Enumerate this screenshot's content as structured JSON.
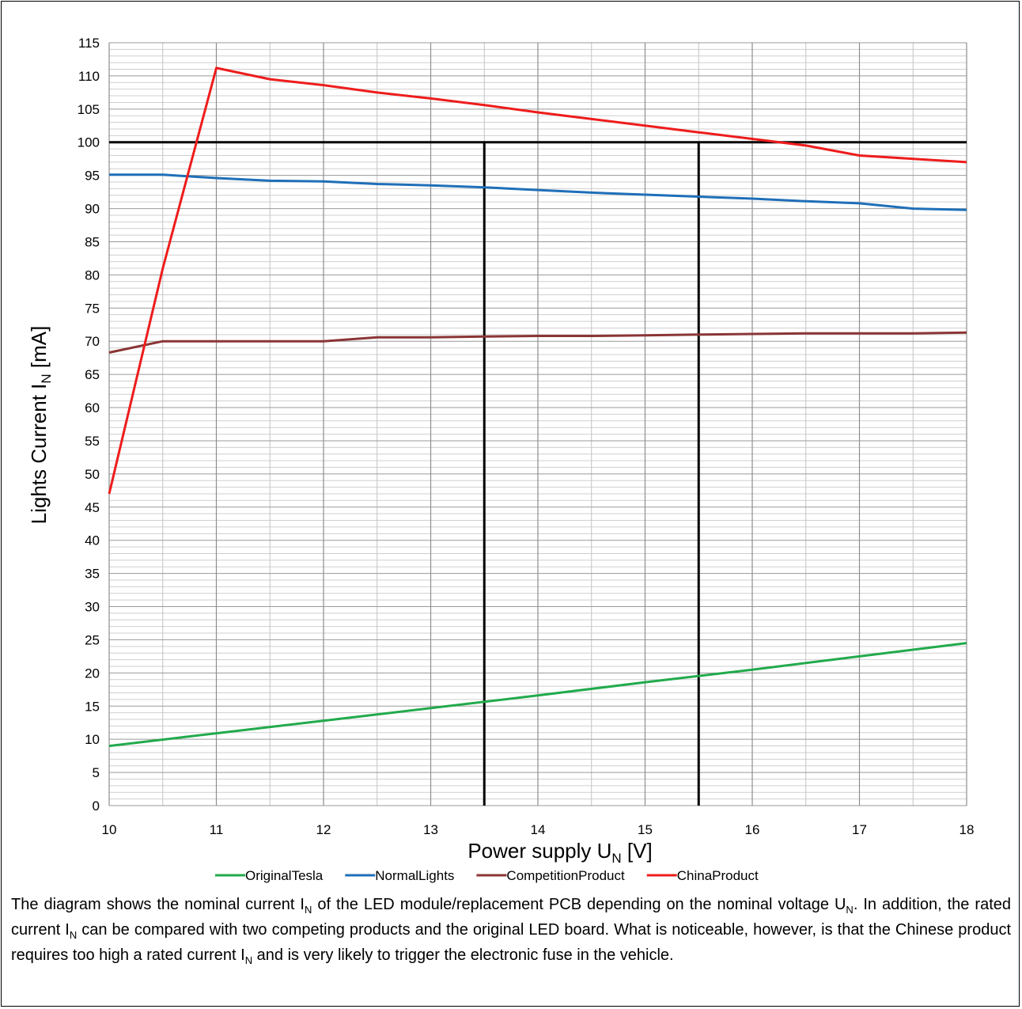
{
  "chart_data": {
    "type": "line",
    "xlabel": {
      "main": "Power supply U",
      "sub": "N",
      "unit": " [V]"
    },
    "ylabel": {
      "main": "Lights Current I",
      "sub": "N",
      "unit": " [mA]"
    },
    "xlim": [
      10,
      18
    ],
    "ylim": [
      0,
      115
    ],
    "x_major_ticks": [
      10,
      11,
      12,
      13,
      14,
      15,
      16,
      17,
      18
    ],
    "y_major_ticks": [
      0,
      5,
      10,
      15,
      20,
      25,
      30,
      35,
      40,
      45,
      50,
      55,
      60,
      65,
      70,
      75,
      80,
      85,
      90,
      95,
      100,
      105,
      110,
      115
    ],
    "x_minor_step": 0.5,
    "y_minor_step": 1,
    "grid": true,
    "legend_position": "bottom",
    "series": [
      {
        "name": "OriginalTesla",
        "color": "#22aa4c",
        "x": [
          10,
          11,
          12,
          13,
          14,
          15,
          16,
          17,
          18
        ],
        "values": [
          9.0,
          10.9,
          12.8,
          14.7,
          16.6,
          18.6,
          20.5,
          22.5,
          24.5
        ]
      },
      {
        "name": "NormalLights",
        "color": "#1f6fb8",
        "x": [
          10,
          10.5,
          11,
          11.5,
          12,
          12.5,
          13,
          13.5,
          14,
          14.5,
          15,
          15.5,
          16,
          16.5,
          17,
          17.5,
          18
        ],
        "values": [
          95.1,
          95.1,
          94.6,
          94.2,
          94.1,
          93.7,
          93.5,
          93.2,
          92.8,
          92.4,
          92.1,
          91.8,
          91.5,
          91.1,
          90.8,
          90.0,
          89.8
        ]
      },
      {
        "name": "CompetitionProduct",
        "color": "#8b3535",
        "x": [
          10,
          10.5,
          11,
          11.5,
          12,
          12.5,
          13,
          13.5,
          14,
          14.5,
          15,
          15.5,
          16,
          16.5,
          17,
          17.5,
          18
        ],
        "values": [
          68.3,
          70.0,
          70.0,
          70.0,
          70.0,
          70.6,
          70.6,
          70.7,
          70.8,
          70.8,
          70.9,
          71.0,
          71.1,
          71.2,
          71.2,
          71.2,
          71.3
        ]
      },
      {
        "name": "ChinaProduct",
        "color": "#ee1c1c",
        "x": [
          10,
          10.5,
          11,
          11.5,
          12,
          12.5,
          13,
          13.5,
          14,
          14.5,
          15,
          15.5,
          16,
          16.5,
          17,
          17.5,
          18
        ],
        "values": [
          47.0,
          81.0,
          111.2,
          109.5,
          108.6,
          107.5,
          106.6,
          105.6,
          104.5,
          103.5,
          102.5,
          101.5,
          100.5,
          99.5,
          98.0,
          97.5,
          97.0
        ]
      }
    ],
    "reference_lines": {
      "color": "#000000",
      "horizontal": {
        "y": 100,
        "x_from": 10,
        "x_to": 18
      },
      "vertical": [
        {
          "x": 13.5,
          "y_from": 0,
          "y_to": 100
        },
        {
          "x": 15.5,
          "y_from": 0,
          "y_to": 100
        }
      ]
    }
  },
  "caption": {
    "p1": "The diagram shows the nominal current I",
    "s1": "N",
    "p2": " of the LED module/replacement PCB depending on the nominal voltage U",
    "s2": "N",
    "p3": ". In addition, the rated current I",
    "s3": "N",
    "p4": " can be compared with two competing products and the original LED board. What is noticeable, however, is that the Chinese product requires too high a rated current I",
    "s4": "N",
    "p5": " and is very likely to trigger the electronic fuse in the vehicle."
  }
}
